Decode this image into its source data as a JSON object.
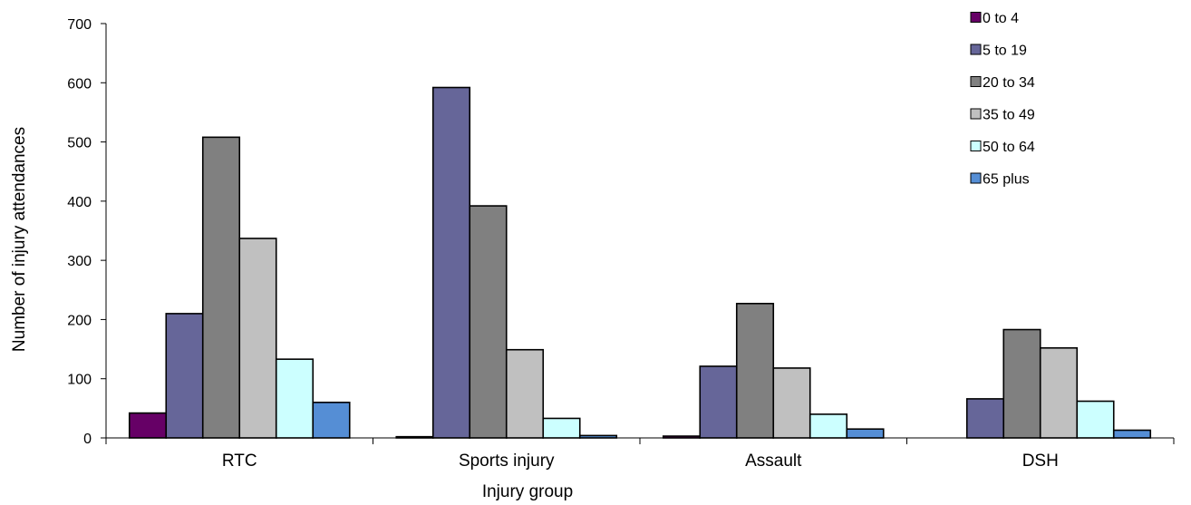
{
  "chart_data": {
    "type": "bar",
    "title": "",
    "xlabel": "Injury group",
    "ylabel": "Number of injury attendances",
    "ylim": [
      0,
      700
    ],
    "yticks": [
      0,
      100,
      200,
      300,
      400,
      500,
      600,
      700
    ],
    "categories": [
      "RTC",
      "Sports injury",
      "Assault",
      "DSH"
    ],
    "series": [
      {
        "name": "0 to 4",
        "color": "#660066",
        "values": [
          42,
          2,
          3,
          0
        ]
      },
      {
        "name": "5 to 19",
        "color": "#666699",
        "values": [
          210,
          592,
          121,
          66
        ]
      },
      {
        "name": "20 to 34",
        "color": "#808080",
        "values": [
          508,
          392,
          227,
          183
        ]
      },
      {
        "name": "35 to 49",
        "color": "#c0c0c0",
        "values": [
          337,
          149,
          118,
          152
        ]
      },
      {
        "name": "50 to 64",
        "color": "#ccffff",
        "values": [
          133,
          33,
          40,
          62
        ]
      },
      {
        "name": "65 plus",
        "color": "#558ed5",
        "values": [
          60,
          4,
          15,
          13
        ]
      }
    ],
    "grid": false,
    "legend_position": "top-right"
  }
}
